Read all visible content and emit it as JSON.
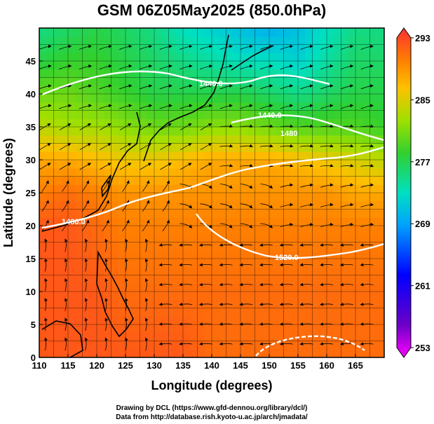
{
  "chart_data": {
    "type": "heatmap",
    "title": "GSM 06Z05May2025 (850.0hPa)",
    "xlabel": "Longitude (degrees)",
    "ylabel": "Latitude  (degrees)",
    "xlim": [
      110,
      170
    ],
    "ylim": [
      0,
      50
    ],
    "x_ticks": [
      "110",
      "115",
      "120",
      "125",
      "130",
      "135",
      "140",
      "145",
      "150",
      "155",
      "160",
      "165"
    ],
    "y_ticks": [
      "0",
      "5",
      "10",
      "15",
      "20",
      "25",
      "30",
      "35",
      "40",
      "45"
    ],
    "colorbar": {
      "min": 253,
      "max": 293,
      "tick_labels": [
        "293",
        "285",
        "277",
        "269",
        "261",
        "253"
      ]
    },
    "temperature_field": [
      {
        "lat": 0,
        "values": [
          291,
          291,
          291,
          291,
          291,
          291,
          290,
          290,
          290,
          290,
          290,
          290,
          290
        ]
      },
      {
        "lat": 10,
        "values": [
          291,
          291,
          291,
          290,
          290,
          290,
          290,
          290,
          290,
          290,
          290,
          290,
          290
        ]
      },
      {
        "lat": 20,
        "values": [
          291,
          291,
          290,
          289,
          289,
          289,
          289,
          289,
          289,
          289,
          289,
          289,
          289
        ]
      },
      {
        "lat": 25,
        "values": [
          289,
          290,
          289,
          288,
          288,
          288,
          288,
          288,
          288,
          288,
          288,
          287,
          287
        ]
      },
      {
        "lat": 30,
        "values": [
          287,
          287,
          286,
          285,
          285,
          286,
          287,
          287,
          287,
          286,
          285,
          284,
          283
        ]
      },
      {
        "lat": 35,
        "values": [
          283,
          282,
          282,
          281,
          280,
          280,
          281,
          281,
          280,
          279,
          279,
          279,
          278
        ]
      },
      {
        "lat": 40,
        "values": [
          280,
          280,
          279,
          278,
          277,
          277,
          277,
          277,
          276,
          275,
          276,
          277,
          277
        ]
      },
      {
        "lat": 45,
        "values": [
          277,
          278,
          278,
          277,
          276,
          275,
          274,
          273,
          273,
          272,
          274,
          276,
          276
        ]
      },
      {
        "lat": 50,
        "values": [
          275,
          276,
          277,
          276,
          275,
          273,
          272,
          271,
          270,
          271,
          273,
          275,
          275
        ]
      }
    ],
    "contour_labels": [
      "1440.0",
      "1440.0",
      "1480.0",
      "1520.0",
      "1480"
    ],
    "credits": [
      "Drawing by DCL (https://www.gfd-dennou.org/library/dcl/)",
      "Data from http://database.rish.kyoto-u.ac.jp/arch/jmadata/"
    ]
  }
}
